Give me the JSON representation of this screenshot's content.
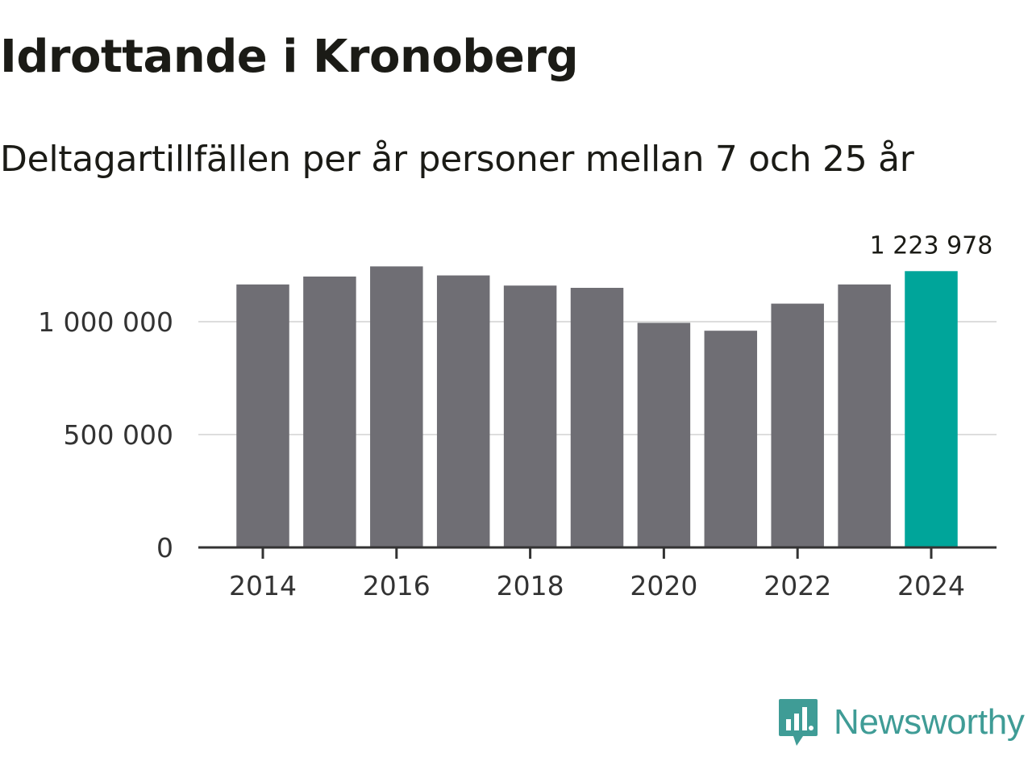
{
  "header": {
    "title": "Idrottande i Kronoberg",
    "subtitle": "Deltagartillfällen per år personer mellan 7 och 25 år"
  },
  "brand": {
    "name": "Newsworthy",
    "color": "#3f9c96"
  },
  "colors": {
    "bar": "#6f6e74",
    "highlight": "#00a59a",
    "grid": "#dddddd",
    "axis": "#333333"
  },
  "chart_data": {
    "type": "bar",
    "title": "Idrottande i Kronoberg",
    "subtitle": "Deltagartillfällen per år personer mellan 7 och 25 år",
    "xlabel": "",
    "ylabel": "",
    "categories": [
      2014,
      2015,
      2016,
      2017,
      2018,
      2019,
      2020,
      2021,
      2022,
      2023,
      2024
    ],
    "values": [
      1165000,
      1200000,
      1245000,
      1205000,
      1160000,
      1150000,
      995000,
      960000,
      1080000,
      1165000,
      1223978
    ],
    "highlight_index": 10,
    "highlight_label": "1 223 978",
    "ylim": [
      0,
      1250000
    ],
    "yticks": [
      {
        "value": 0,
        "label": "0"
      },
      {
        "value": 500000,
        "label": "500 000"
      },
      {
        "value": 1000000,
        "label": "1 000 000"
      }
    ],
    "xticks": [
      {
        "value": 2014,
        "label": "2014"
      },
      {
        "value": 2016,
        "label": "2016"
      },
      {
        "value": 2018,
        "label": "2018"
      },
      {
        "value": 2020,
        "label": "2020"
      },
      {
        "value": 2022,
        "label": "2022"
      },
      {
        "value": 2024,
        "label": "2024"
      }
    ],
    "grid": true,
    "legend": "none"
  }
}
